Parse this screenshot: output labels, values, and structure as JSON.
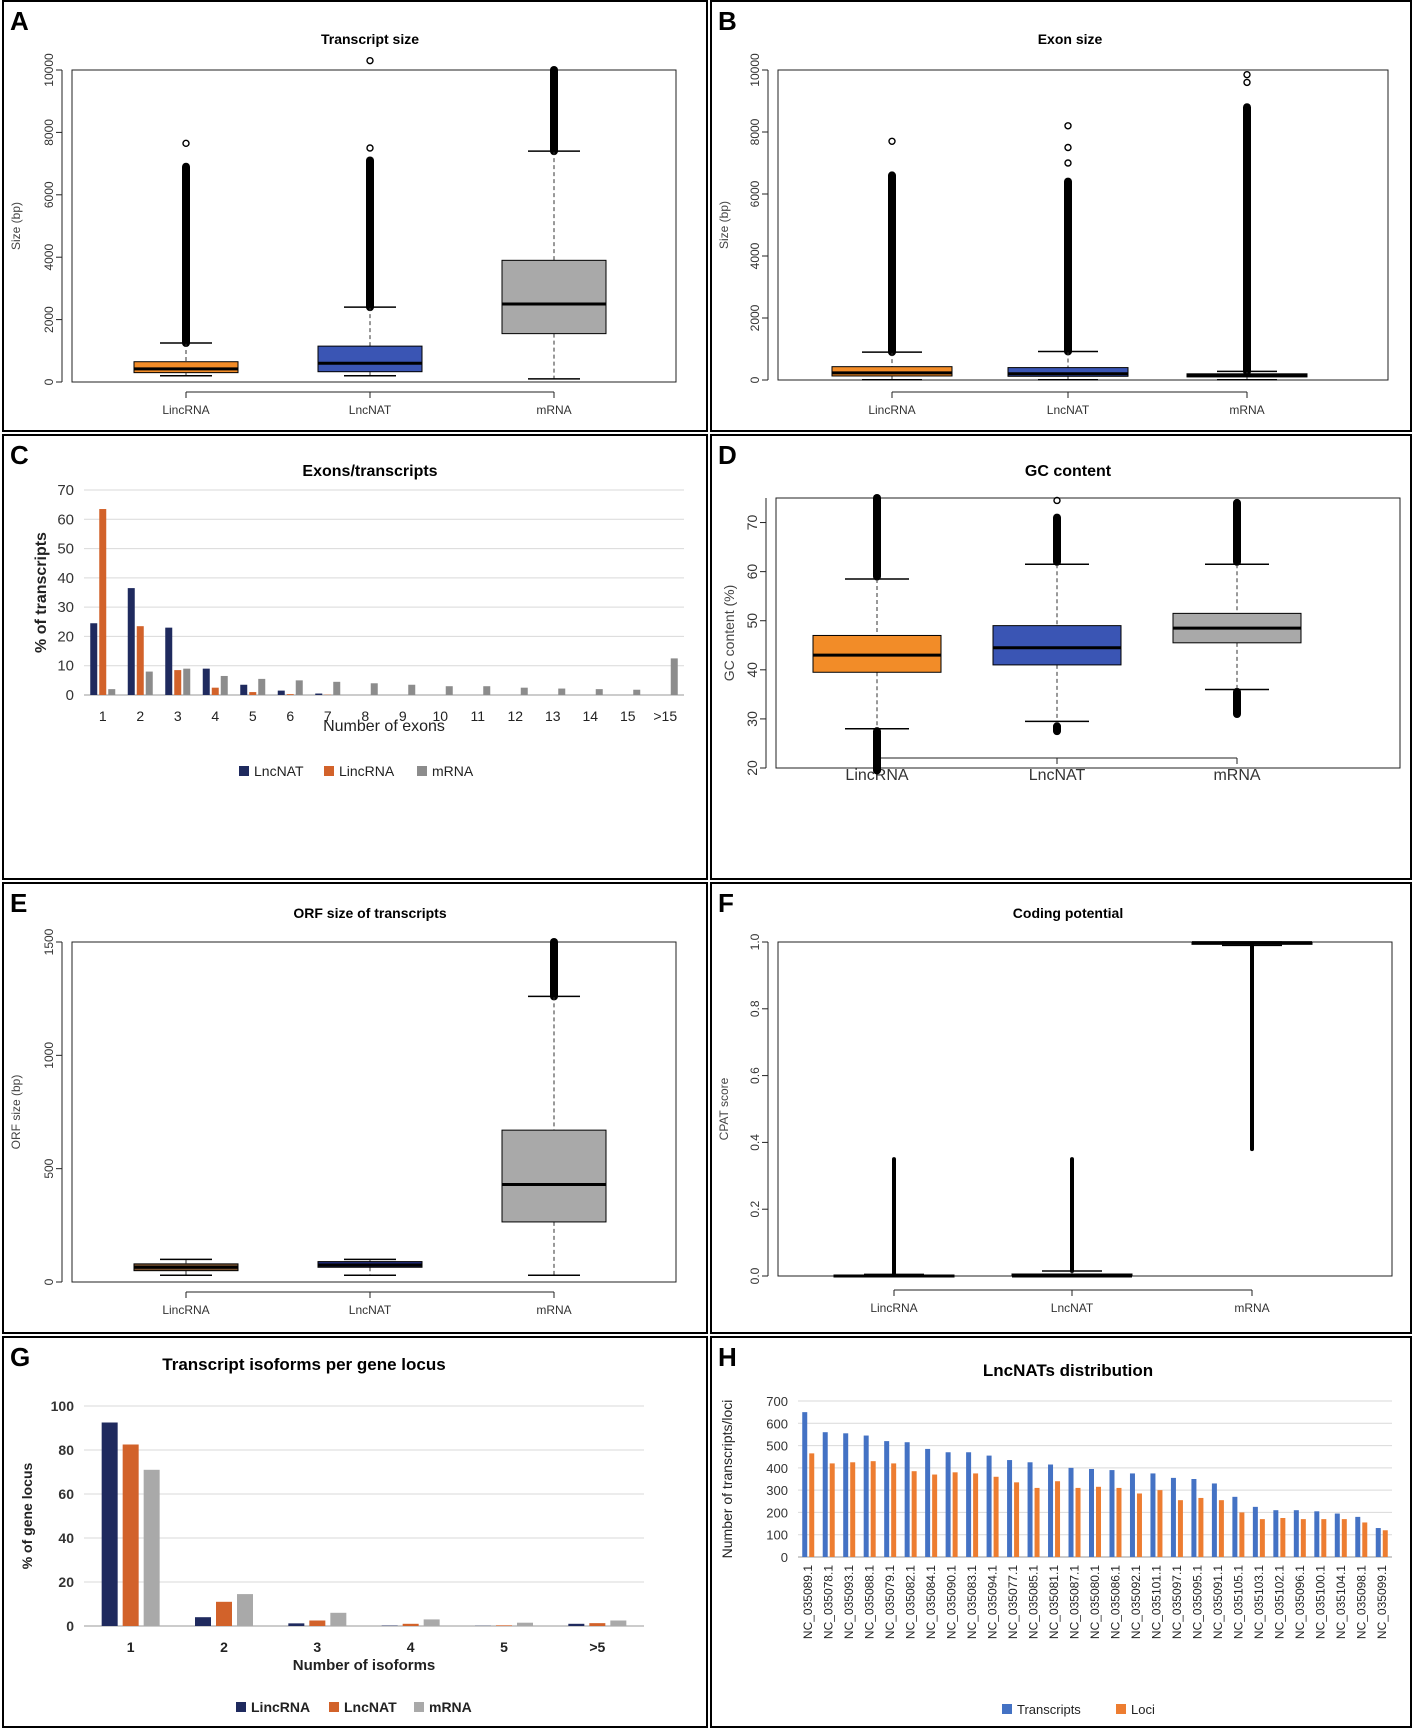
{
  "panels": {
    "A": {
      "letter": "A",
      "chart_data": {
        "type": "boxplot",
        "title": "Transcript size",
        "ylabel": "Size (bp)",
        "ylim": [
          0,
          10000
        ],
        "yticks": [
          0,
          2000,
          4000,
          6000,
          8000,
          10000
        ],
        "categories": [
          "LincRNA",
          "LncNAT",
          "mRNA"
        ],
        "colors": [
          "#f28c28",
          "#3a55b4",
          "#a9a9a9"
        ],
        "boxes": [
          {
            "whisker_low": 200,
            "q1": 300,
            "median": 420,
            "q3": 650,
            "whisker_high": 1250,
            "outlier_min": 1250,
            "outlier_max": 6900,
            "extreme_outliers": [
              7650
            ]
          },
          {
            "whisker_low": 200,
            "q1": 330,
            "median": 600,
            "q3": 1150,
            "whisker_high": 2400,
            "outlier_min": 2400,
            "outlier_max": 7100,
            "extreme_outliers": [
              7500,
              10300
            ]
          },
          {
            "whisker_low": 100,
            "q1": 1550,
            "median": 2500,
            "q3": 3900,
            "whisker_high": 7400,
            "outlier_min": 7400,
            "outlier_max": 10000,
            "extreme_outliers": []
          }
        ]
      }
    },
    "B": {
      "letter": "B",
      "chart_data": {
        "type": "boxplot",
        "title": "Exon size",
        "ylabel": "Size (bp)",
        "ylim": [
          0,
          10000
        ],
        "yticks": [
          0,
          2000,
          4000,
          6000,
          8000,
          10000
        ],
        "categories": [
          "LincRNA",
          "LncNAT",
          "mRNA"
        ],
        "colors": [
          "#f28c28",
          "#3a55b4",
          "#111111"
        ],
        "boxes": [
          {
            "whisker_low": 10,
            "q1": 130,
            "median": 230,
            "q3": 430,
            "whisker_high": 900,
            "outlier_min": 900,
            "outlier_max": 6600,
            "extreme_outliers": [
              7700
            ]
          },
          {
            "whisker_low": 10,
            "q1": 120,
            "median": 200,
            "q3": 400,
            "whisker_high": 920,
            "outlier_min": 920,
            "outlier_max": 6400,
            "extreme_outliers": [
              7000,
              7500,
              8200
            ]
          },
          {
            "whisker_low": 10,
            "q1": 100,
            "median": 140,
            "q3": 200,
            "whisker_high": 280,
            "outlier_min": 280,
            "outlier_max": 8800,
            "extreme_outliers": [
              9600,
              9850
            ]
          }
        ]
      }
    },
    "C": {
      "letter": "C",
      "chart_data": {
        "type": "bar",
        "title": "Exons/transcripts",
        "xlabel": "Number of exons",
        "ylabel": "% of transcripts",
        "ylim": [
          0,
          70
        ],
        "yticks": [
          0,
          10,
          20,
          30,
          40,
          50,
          60,
          70
        ],
        "categories": [
          "1",
          "2",
          "3",
          "4",
          "5",
          "6",
          "7",
          "8",
          "9",
          "10",
          "11",
          "12",
          "13",
          "14",
          "15",
          ">15"
        ],
        "series": [
          {
            "name": "LncNAT",
            "color": "#1f2a5e",
            "values": [
              24.5,
              36.5,
              23,
              9,
              3.5,
              1.5,
              0.5,
              0,
              0,
              0,
              0,
              0,
              0,
              0,
              0,
              0
            ]
          },
          {
            "name": "LincRNA",
            "color": "#d2622a",
            "values": [
              63.5,
              23.5,
              8.5,
              2.5,
              1,
              0.3,
              0.1,
              0,
              0,
              0,
              0,
              0,
              0,
              0,
              0,
              0
            ]
          },
          {
            "name": "mRNA",
            "color": "#8c8c8c",
            "values": [
              2,
              8,
              9,
              6.5,
              5.5,
              5,
              4.5,
              4,
              3.5,
              3,
              3,
              2.5,
              2.2,
              2,
              1.8,
              12.5
            ]
          }
        ]
      }
    },
    "D": {
      "letter": "D",
      "chart_data": {
        "type": "boxplot",
        "title": "GC content",
        "ylabel": "GC content (%)",
        "ylim": [
          20,
          75
        ],
        "yticks": [
          20,
          30,
          40,
          50,
          60,
          70
        ],
        "categories": [
          "LincRNA",
          "LncNAT",
          "mRNA"
        ],
        "colors": [
          "#f28c28",
          "#3a55b4",
          "#a9a9a9"
        ],
        "boxes": [
          {
            "whisker_low": 28,
            "q1": 39.5,
            "median": 43,
            "q3": 47,
            "whisker_high": 58.5,
            "outlier_min": 59,
            "outlier_max": 75,
            "low_outlier_min": 19.5,
            "low_outlier_max": 27.5
          },
          {
            "whisker_low": 29.5,
            "q1": 41,
            "median": 44.5,
            "q3": 49,
            "whisker_high": 61.5,
            "outlier_min": 62,
            "outlier_max": 71,
            "low_outlier_min": 27.5,
            "low_outlier_max": 28.5,
            "extreme_outliers": [
              74.5
            ]
          },
          {
            "whisker_low": 36,
            "q1": 45.5,
            "median": 48.5,
            "q3": 51.5,
            "whisker_high": 61.5,
            "outlier_min": 62,
            "outlier_max": 74,
            "low_outlier_min": 31,
            "low_outlier_max": 35.5
          }
        ]
      }
    },
    "E": {
      "letter": "E",
      "chart_data": {
        "type": "boxplot",
        "title": "ORF size of transcripts",
        "ylabel": "ORF size (bp)",
        "ylim": [
          0,
          1500
        ],
        "yticks": [
          0,
          500,
          1000,
          1500
        ],
        "categories": [
          "LincRNA",
          "LncNAT",
          "mRNA"
        ],
        "colors": [
          "#7a5230",
          "#1f2a7a",
          "#a9a9a9"
        ],
        "boxes": [
          {
            "whisker_low": 30,
            "q1": 50,
            "median": 65,
            "q3": 80,
            "whisker_high": 100,
            "outlier_min": 100,
            "outlier_max": 100
          },
          {
            "whisker_low": 30,
            "q1": 65,
            "median": 75,
            "q3": 90,
            "whisker_high": 100,
            "outlier_min": 100,
            "outlier_max": 100
          },
          {
            "whisker_low": 30,
            "q1": 265,
            "median": 430,
            "q3": 670,
            "whisker_high": 1260,
            "outlier_min": 1260,
            "outlier_max": 1500
          }
        ]
      }
    },
    "F": {
      "letter": "F",
      "chart_data": {
        "type": "boxplot",
        "title": "Coding potential",
        "ylabel": "CPAT score",
        "ylim": [
          0,
          1.0
        ],
        "yticks": [
          "0.0",
          "0.2",
          "0.4",
          "0.6",
          "0.8",
          "1.0"
        ],
        "categories": [
          "LincRNA",
          "LncNAT",
          "mRNA"
        ],
        "colors": [
          "#000000",
          "#000000",
          "#000000"
        ],
        "boxes": [
          {
            "whisker_low": 0,
            "q1": 0,
            "median": 0,
            "q3": 0.003,
            "whisker_high": 0.005,
            "outlier_min": 0.005,
            "outlier_max": 0.35
          },
          {
            "whisker_low": 0,
            "q1": 0,
            "median": 0,
            "q3": 0.006,
            "whisker_high": 0.015,
            "outlier_min": 0.015,
            "outlier_max": 0.35
          },
          {
            "whisker_low": 0.99,
            "q1": 0.995,
            "median": 0.998,
            "q3": 0.999,
            "whisker_high": 1.0,
            "outlier_min": 0.38,
            "outlier_max": 0.99
          }
        ]
      }
    },
    "G": {
      "letter": "G",
      "chart_data": {
        "type": "bar",
        "title": "Transcript isoforms per gene locus",
        "xlabel": "Number of isoforms",
        "ylabel": "% of gene locus",
        "ylim": [
          0,
          100
        ],
        "yticks": [
          0,
          20,
          40,
          60,
          80,
          100
        ],
        "categories": [
          "1",
          "2",
          "3",
          "4",
          "5",
          ">5"
        ],
        "series": [
          {
            "name": "LincRNA",
            "color": "#1f2a5e",
            "values": [
              92.5,
              4,
              1.2,
              0.2,
              0.1,
              1
            ]
          },
          {
            "name": "LncNAT",
            "color": "#d2622a",
            "values": [
              82.5,
              11,
              2.5,
              1,
              0.3,
              1.3
            ]
          },
          {
            "name": "mRNA",
            "color": "#a9a9a9",
            "values": [
              71,
              14.5,
              6,
              3,
              1.5,
              2.5
            ]
          }
        ]
      }
    },
    "H": {
      "letter": "H",
      "chart_data": {
        "type": "bar",
        "title": "LncNATs distribution",
        "xlabel": "",
        "ylabel": "Number of transcripts/loci",
        "ylim": [
          0,
          700
        ],
        "yticks": [
          0,
          100,
          200,
          300,
          400,
          500,
          600,
          700
        ],
        "categories": [
          "NC_035089.1",
          "NC_035078.1",
          "NC_035093.1",
          "NC_035088.1",
          "NC_035079.1",
          "NC_035082.1",
          "NC_035084.1",
          "NC_035090.1",
          "NC_035083.1",
          "NC_035094.1",
          "NC_035077.1",
          "NC_035085.1",
          "NC_035081.1",
          "NC_035087.1",
          "NC_035080.1",
          "NC_035086.1",
          "NC_035092.1",
          "NC_035101.1",
          "NC_035097.1",
          "NC_035095.1",
          "NC_035091.1",
          "NC_035105.1",
          "NC_035103.1",
          "NC_035102.1",
          "NC_035096.1",
          "NC_035100.1",
          "NC_035104.1",
          "NC_035098.1",
          "NC_035099.1"
        ],
        "series": [
          {
            "name": "Transcripts",
            "color": "#4472c4",
            "values": [
              650,
              560,
              555,
              545,
              520,
              515,
              485,
              470,
              470,
              455,
              435,
              425,
              415,
              400,
              395,
              390,
              375,
              375,
              355,
              350,
              330,
              270,
              225,
              210,
              210,
              205,
              195,
              180,
              130
            ]
          },
          {
            "name": "Loci",
            "color": "#ed7d31",
            "values": [
              465,
              420,
              425,
              430,
              420,
              385,
              370,
              380,
              375,
              360,
              335,
              310,
              340,
              310,
              315,
              310,
              285,
              300,
              255,
              265,
              255,
              200,
              170,
              175,
              170,
              170,
              170,
              155,
              120
            ]
          }
        ]
      }
    }
  }
}
